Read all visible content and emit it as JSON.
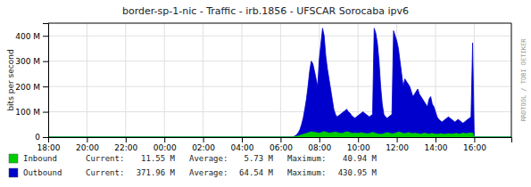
{
  "chart_data": {
    "type": "area",
    "title": "border-sp-1-nic - Traffic - irb.1856 - UFSCAR Sorocaba ipv6",
    "ylabel": "bits per second",
    "grid": true,
    "legend": "bottom",
    "annotations": [
      {
        "text": "RRDTOOL / TOBI OETIKER"
      }
    ],
    "legend_stats": [
      "Current:",
      "Average:",
      "Maximum:"
    ],
    "ylim": [
      0,
      450000000
    ],
    "yticks": [
      0,
      {
        "value": 100000000,
        "label": "100 M"
      },
      {
        "value": 200000000,
        "label": "200 M"
      },
      {
        "value": 300000000,
        "label": "300 M"
      },
      {
        "value": 400000000,
        "label": "400 M"
      }
    ],
    "categories": [
      "18:00",
      null,
      null,
      null,
      null,
      null,
      null,
      null,
      null,
      null,
      null,
      null,
      null,
      null,
      null,
      null,
      null,
      null,
      null,
      null,
      null,
      null,
      null,
      null,
      "20:00",
      null,
      null,
      null,
      null,
      null,
      null,
      null,
      null,
      null,
      null,
      null,
      null,
      null,
      null,
      null,
      null,
      null,
      null,
      null,
      null,
      null,
      null,
      null,
      "22:00",
      null,
      null,
      null,
      null,
      null,
      null,
      null,
      null,
      null,
      null,
      null,
      null,
      null,
      null,
      null,
      null,
      null,
      null,
      null,
      null,
      null,
      null,
      null,
      "00:00",
      null,
      null,
      null,
      null,
      null,
      null,
      null,
      null,
      null,
      null,
      null,
      null,
      null,
      null,
      null,
      null,
      null,
      null,
      null,
      null,
      null,
      null,
      null,
      "02:00",
      null,
      null,
      null,
      null,
      null,
      null,
      null,
      null,
      null,
      null,
      null,
      null,
      null,
      null,
      null,
      null,
      null,
      null,
      null,
      null,
      null,
      null,
      null,
      "04:00",
      null,
      null,
      null,
      null,
      null,
      null,
      null,
      null,
      null,
      null,
      null,
      null,
      null,
      null,
      null,
      null,
      null,
      null,
      null,
      null,
      null,
      null,
      null,
      "06:00",
      null,
      null,
      null,
      null,
      null,
      null,
      null,
      null,
      null,
      null,
      null,
      null,
      null,
      null,
      null,
      null,
      null,
      null,
      null,
      null,
      null,
      null,
      null,
      "08:00",
      null,
      null,
      null,
      null,
      null,
      null,
      null,
      null,
      null,
      null,
      null,
      null,
      null,
      null,
      null,
      null,
      null,
      null,
      null,
      null,
      null,
      null,
      null,
      "10:00",
      null,
      null,
      null,
      null,
      null,
      null,
      null,
      null,
      null,
      null,
      null,
      null,
      null,
      null,
      null,
      null,
      null,
      null,
      null,
      null,
      null,
      null,
      null,
      "12:00",
      null,
      null,
      null,
      null,
      null,
      null,
      null,
      null,
      null,
      null,
      null,
      null,
      null,
      null,
      null,
      null,
      null,
      null,
      null,
      null,
      null,
      null,
      null,
      "14:00",
      null,
      null,
      null,
      null,
      null,
      null,
      null,
      null,
      null,
      null,
      null,
      null,
      null,
      null,
      null,
      null,
      null,
      null,
      null,
      null,
      null,
      null,
      null,
      "16:00",
      null,
      null,
      null,
      null,
      null,
      null,
      null,
      null,
      null,
      null,
      null,
      null,
      null,
      null,
      null,
      null,
      null,
      null,
      null,
      null,
      null,
      null,
      null
    ],
    "series": [
      {
        "name": "Inbound",
        "color": "#00cc00",
        "stats": [
          {
            "value": 11550000,
            "label": "11.55 M"
          },
          {
            "value": 5730000,
            "label": "5.73 M"
          },
          {
            "value": 40940000,
            "label": "40.94 M"
          }
        ],
        "values": [
          0,
          0,
          0,
          0,
          0,
          0,
          0,
          0,
          0,
          0,
          0,
          0,
          0,
          0,
          0,
          0,
          0,
          0,
          0,
          0,
          0,
          0,
          0,
          0,
          0,
          0,
          0,
          0,
          0,
          0,
          0,
          0,
          0,
          0,
          0,
          0,
          0,
          0,
          0,
          0,
          0,
          0,
          0,
          0,
          0,
          0,
          0,
          0,
          0,
          0,
          0,
          0,
          0,
          0,
          0,
          0,
          0,
          0,
          0,
          0,
          0,
          0,
          0,
          0,
          0,
          0,
          0,
          0,
          0,
          0,
          0,
          0,
          0,
          0,
          0,
          0,
          0,
          0,
          0,
          0,
          0,
          0,
          0,
          0,
          0,
          0,
          0,
          0,
          0,
          0,
          0,
          0,
          0,
          0,
          0,
          0,
          0,
          0,
          0,
          0,
          0,
          0,
          0,
          0,
          0,
          0,
          0,
          0,
          0,
          0,
          0,
          0,
          0,
          0,
          0,
          0,
          0,
          0,
          0,
          0,
          0,
          0,
          0,
          0,
          0,
          0,
          0,
          0,
          0,
          0,
          0,
          0,
          0,
          0,
          0,
          0,
          0,
          0,
          0,
          0,
          0,
          0,
          0,
          0,
          0,
          0,
          0,
          0,
          0,
          0,
          0,
          0,
          1000000,
          2000000,
          3000000,
          5000000,
          7000000,
          9000000,
          11000000,
          13000000,
          15000000,
          17000000,
          19000000,
          21000000,
          20000000,
          19000000,
          18000000,
          17000000,
          16000000,
          18000000,
          20000000,
          22000000,
          20000000,
          18000000,
          16000000,
          17000000,
          18000000,
          19000000,
          20000000,
          18000000,
          17000000,
          16000000,
          15000000,
          17000000,
          19000000,
          21000000,
          20000000,
          18000000,
          16000000,
          15000000,
          17000000,
          16000000,
          15000000,
          16000000,
          18000000,
          17000000,
          15000000,
          14000000,
          13000000,
          15000000,
          17000000,
          19000000,
          17000000,
          15000000,
          13000000,
          12000000,
          11550000,
          12000000,
          14000000,
          16000000,
          18000000,
          17000000,
          15000000,
          13000000,
          14000000,
          16000000,
          18000000,
          20000000,
          19000000,
          17000000,
          15000000,
          14000000,
          16000000,
          18000000,
          17000000,
          15000000,
          14000000,
          16000000,
          15000000,
          14000000,
          13000000,
          12000000,
          14000000,
          16000000,
          15000000,
          13000000,
          12000000,
          14000000,
          15000000,
          13000000,
          12000000,
          11000000,
          12000000,
          14000000,
          13000000,
          12000000,
          11000000,
          13000000,
          14000000,
          13000000,
          12000000,
          13000000,
          14000000,
          15000000,
          13000000,
          12000000,
          14000000,
          16000000,
          15000000,
          14000000,
          15000000,
          16000000,
          17000000,
          16000000,
          0,
          0,
          0,
          0,
          0,
          0,
          0,
          0,
          0,
          0,
          0,
          0,
          0,
          0,
          0,
          0,
          0,
          0,
          0,
          0,
          0,
          0,
          0,
          0
        ]
      },
      {
        "name": "Outbound",
        "color": "#0000cc",
        "stats": [
          {
            "value": 371960000,
            "label": "371.96 M"
          },
          {
            "value": 64540000,
            "label": "64.54 M"
          },
          {
            "value": 430950000,
            "label": "430.95 M"
          }
        ],
        "values": [
          0,
          0,
          0,
          0,
          0,
          0,
          0,
          0,
          0,
          0,
          0,
          0,
          0,
          0,
          0,
          0,
          0,
          0,
          0,
          0,
          0,
          0,
          0,
          0,
          0,
          0,
          0,
          0,
          0,
          0,
          0,
          0,
          0,
          0,
          0,
          0,
          0,
          0,
          0,
          0,
          0,
          0,
          0,
          0,
          0,
          0,
          0,
          0,
          0,
          0,
          0,
          0,
          0,
          0,
          0,
          0,
          0,
          0,
          0,
          0,
          0,
          0,
          0,
          0,
          0,
          0,
          0,
          0,
          0,
          0,
          0,
          0,
          0,
          0,
          0,
          0,
          0,
          0,
          0,
          0,
          0,
          0,
          0,
          0,
          0,
          0,
          0,
          0,
          0,
          0,
          0,
          0,
          0,
          0,
          0,
          0,
          0,
          0,
          0,
          0,
          0,
          0,
          0,
          0,
          0,
          0,
          0,
          0,
          0,
          0,
          0,
          0,
          0,
          0,
          0,
          0,
          0,
          0,
          0,
          0,
          0,
          0,
          0,
          0,
          0,
          0,
          0,
          0,
          0,
          0,
          0,
          0,
          0,
          0,
          0,
          0,
          0,
          0,
          0,
          0,
          0,
          0,
          0,
          0,
          0,
          0,
          0,
          0,
          0,
          0,
          0,
          0,
          2000000,
          5000000,
          10000000,
          18000000,
          30000000,
          50000000,
          75000000,
          110000000,
          150000000,
          200000000,
          260000000,
          300000000,
          290000000,
          260000000,
          230000000,
          200000000,
          310000000,
          370000000,
          430000000,
          400000000,
          320000000,
          270000000,
          230000000,
          190000000,
          150000000,
          110000000,
          90000000,
          80000000,
          85000000,
          90000000,
          95000000,
          100000000,
          105000000,
          110000000,
          100000000,
          95000000,
          85000000,
          80000000,
          75000000,
          80000000,
          85000000,
          90000000,
          95000000,
          100000000,
          95000000,
          90000000,
          85000000,
          80000000,
          85000000,
          90000000,
          430000000,
          410000000,
          370000000,
          300000000,
          200000000,
          130000000,
          90000000,
          80000000,
          75000000,
          80000000,
          85000000,
          90000000,
          420000000,
          400000000,
          380000000,
          350000000,
          300000000,
          250000000,
          200000000,
          230000000,
          220000000,
          210000000,
          200000000,
          180000000,
          160000000,
          170000000,
          180000000,
          190000000,
          170000000,
          160000000,
          150000000,
          140000000,
          130000000,
          120000000,
          150000000,
          160000000,
          130000000,
          120000000,
          100000000,
          80000000,
          70000000,
          65000000,
          60000000,
          65000000,
          70000000,
          75000000,
          80000000,
          75000000,
          70000000,
          65000000,
          60000000,
          65000000,
          70000000,
          65000000,
          60000000,
          55000000,
          60000000,
          65000000,
          70000000,
          75000000,
          80000000,
          371960000,
          0,
          0,
          0,
          0,
          0,
          0,
          0,
          0,
          0,
          0,
          0,
          0,
          0,
          0,
          0,
          0,
          0,
          0,
          0,
          0,
          0,
          0,
          0,
          0
        ]
      }
    ]
  }
}
